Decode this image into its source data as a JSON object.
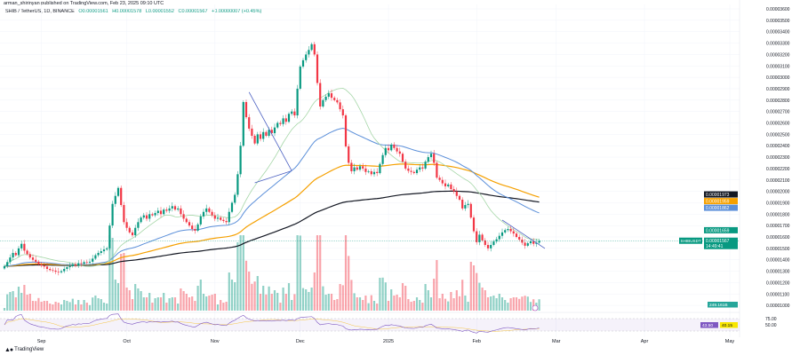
{
  "header": {
    "published": "arman_shirinyan published on TradingView.com, Feb 23, 2025 09:10 UTC",
    "symbol": "SHIB / TetherUS, 1D, BINANCE",
    "open": "O0.00001561",
    "high": "H0.00001578",
    "low": "L0.00001552",
    "close": "C0.00001567",
    "change": "+0.00000007 (+0.45%)"
  },
  "branding": "TradingView",
  "colors": {
    "up": "#089981",
    "down": "#f23645",
    "sma20": "#a5d6a7",
    "ema50": "#5b8fd9",
    "ema100": "#f5a000",
    "ema200": "#131722",
    "trend": "#4a5fc1",
    "rsi": "#7e57c2"
  },
  "chart_data": {
    "type": "candlestick",
    "symbol": "SHIBUSDT",
    "first_date": "2024-08-19",
    "interval": "1D",
    "ylim": [
      9.8e-06,
      3.61e-05
    ],
    "y_ticks": [
      "0.00003600",
      "0.00003500",
      "0.00003400",
      "0.00003300",
      "0.00003200",
      "0.00003100",
      "0.00003000",
      "0.00002900",
      "0.00002800",
      "0.00002700",
      "0.00002600",
      "0.00002500",
      "0.00002400",
      "0.00002300",
      "0.00002200",
      "0.00002100",
      "0.00002000",
      "0.00001900",
      "0.00001800",
      "0.00001700",
      "0.00001600",
      "0.00001500",
      "0.00001400",
      "0.00001300",
      "0.00001200",
      "0.00001100",
      "0.00001000"
    ],
    "x_ticks": [
      {
        "label": "Sep",
        "date": "2024-09-01"
      },
      {
        "label": "Oct",
        "date": "2024-10-01"
      },
      {
        "label": "Nov",
        "date": "2024-11-01"
      },
      {
        "label": "Dec",
        "date": "2024-12-01"
      },
      {
        "label": "2025",
        "date": "2025-01-01"
      },
      {
        "label": "Feb",
        "date": "2025-02-01"
      },
      {
        "label": "Mar",
        "date": "2025-03-01"
      },
      {
        "label": "Apr",
        "date": "2025-04-01"
      },
      {
        "label": "May",
        "date": "2025-05-01"
      }
    ],
    "closes": [
      1.344e-05,
      1.38e-05,
      1.42e-05,
      1.46e-05,
      1.44e-05,
      1.5e-05,
      1.54e-05,
      1.48e-05,
      1.45e-05,
      1.42e-05,
      1.4e-05,
      1.383e-05,
      1.36e-05,
      1.35e-05,
      1.34e-05,
      1.32e-05,
      1.31e-05,
      1.305e-05,
      1.295e-05,
      1.29e-05,
      1.3e-05,
      1.32e-05,
      1.335e-05,
      1.344e-05,
      1.36e-05,
      1.35e-05,
      1.37e-05,
      1.365e-05,
      1.38e-05,
      1.375e-05,
      1.383e-05,
      1.41e-05,
      1.44e-05,
      1.46e-05,
      1.475e-05,
      1.49e-05,
      1.5e-05,
      1.7e-05,
      1.89e-05,
      1.96e-05,
      2.03e-05,
      1.88e-05,
      1.73e-05,
      1.68e-05,
      1.64e-05,
      1.615e-05,
      1.68e-05,
      1.73e-05,
      1.77e-05,
      1.79e-05,
      1.76e-05,
      1.8e-05,
      1.79e-05,
      1.81e-05,
      1.83e-05,
      1.8e-05,
      1.84e-05,
      1.83e-05,
      1.85e-05,
      1.87e-05,
      1.84e-05,
      1.85e-05,
      1.8e-05,
      1.76e-05,
      1.73e-05,
      1.7e-05,
      1.67e-05,
      1.655e-05,
      1.71e-05,
      1.78e-05,
      1.82e-05,
      1.85e-05,
      1.82e-05,
      1.79e-05,
      1.76e-05,
      1.77e-05,
      1.75e-05,
      1.74e-05,
      1.73e-05,
      1.82e-05,
      1.9e-05,
      1.97e-05,
      2.15e-05,
      2.4e-05,
      2.783e-05,
      2.65e-05,
      2.55e-05,
      2.487e-05,
      2.42e-05,
      2.5e-05,
      2.46e-05,
      2.52e-05,
      2.487e-05,
      2.54e-05,
      2.51e-05,
      2.56e-05,
      2.6e-05,
      2.59e-05,
      2.64e-05,
      2.61e-05,
      2.68e-05,
      2.7e-05,
      2.666e-05,
      2.9e-05,
      3.094e-05,
      3.15e-05,
      3.2e-05,
      3.24e-05,
      3.29e-05,
      3.2e-05,
      2.95e-05,
      2.744e-05,
      2.8e-05,
      2.83e-05,
      2.86e-05,
      2.82e-05,
      2.8e-05,
      2.78e-05,
      2.72e-05,
      2.666e-05,
      2.394e-05,
      2.25e-05,
      2.176e-05,
      2.21e-05,
      2.19e-05,
      2.22e-05,
      2.2e-05,
      2.17e-05,
      2.176e-05,
      2.15e-05,
      2.17e-05,
      2.16e-05,
      2.24e-05,
      2.318e-05,
      2.38e-05,
      2.36e-05,
      2.41e-05,
      2.38e-05,
      2.35e-05,
      2.33e-05,
      2.26e-05,
      2.2e-05,
      2.18e-05,
      2.17e-05,
      2.16e-05,
      2.19e-05,
      2.21e-05,
      2.2e-05,
      2.26e-05,
      2.3e-05,
      2.33e-05,
      2.25e-05,
      2.12e-05,
      2.1e-05,
      2.07e-05,
      2.044e-05,
      2.06e-05,
      2.02e-05,
      2e-05,
      1.96e-05,
      1.927e-05,
      1.85e-05,
      1.88e-05,
      1.89e-05,
      1.77e-05,
      1.65e-05,
      1.554e-05,
      1.62e-05,
      1.57e-05,
      1.53e-05,
      1.5e-05,
      1.53e-05,
      1.56e-05,
      1.58e-05,
      1.61e-05,
      1.64e-05,
      1.66e-05,
      1.67e-05,
      1.65e-05,
      1.63e-05,
      1.6e-05,
      1.577e-05,
      1.55e-05,
      1.523e-05,
      1.545e-05,
      1.562e-05,
      1.54e-05,
      1.55e-05,
      1.567e-05
    ],
    "trendlines": [
      {
        "from": {
          "date": "2024-11-13",
          "price": 2.87e-05
        },
        "to": {
          "date": "2024-11-28",
          "price": 2.18e-05
        }
      },
      {
        "from": {
          "date": "2024-11-15",
          "price": 2.075e-05
        },
        "to": {
          "date": "2024-11-28",
          "price": 2.18e-05
        }
      },
      {
        "from": {
          "date": "2025-02-10",
          "price": 1.748e-05
        },
        "to": {
          "date": "2025-02-25",
          "price": 1.499e-05
        }
      }
    ],
    "price_labels": [
      {
        "key": "ema200",
        "text": "0.00001973",
        "value": 1.973e-05
      },
      {
        "key": "ema100",
        "text": "0.00001959",
        "value": 1.959e-05
      },
      {
        "key": "ema50",
        "text": "0.00001862",
        "value": 1.862e-05
      },
      {
        "key": "sma20",
        "text": "0.00001659",
        "value": 1.659e-05
      }
    ],
    "last_price": {
      "symbol": "SHIBUSDT",
      "text": "0.00001567",
      "value": 1.567e-05,
      "countdown": "14:49:41"
    },
    "volume_label": "249.161B",
    "rsi": {
      "levels": [
        "75.00",
        "50.00"
      ],
      "value_label": "43.50",
      "ma_label": "40.15",
      "upper": 75,
      "lower": 25
    }
  }
}
